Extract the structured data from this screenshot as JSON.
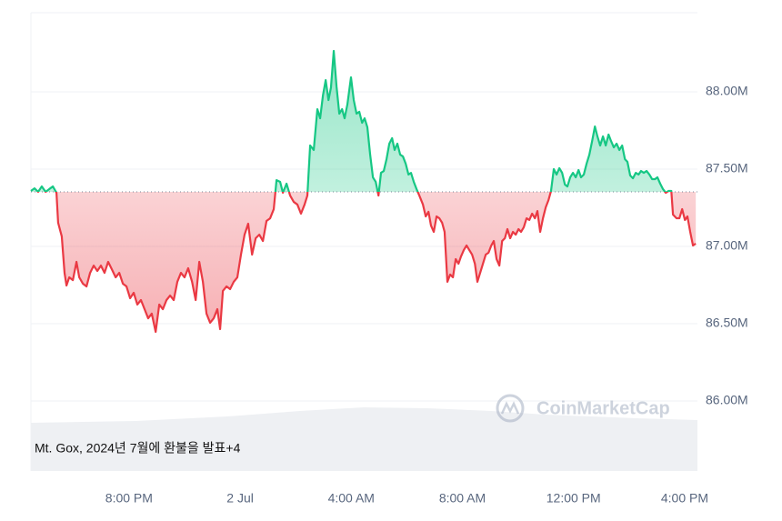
{
  "chart_data": {
    "type": "line",
    "annotation": "Mt. Gox, 2024년 7월에 환불을 발표+4",
    "watermark": "CoinMarketCap",
    "up_color": "#16c784",
    "down_color": "#ea3943",
    "reference_line": 87.353,
    "xlim": [
      -7.53,
      16.46
    ],
    "ylim": [
      85.547,
      88.512
    ],
    "grid": true,
    "xticks": [
      {
        "value": -4,
        "label": "8:00 PM"
      },
      {
        "value": 0,
        "label": "2 Jul"
      },
      {
        "value": 4,
        "label": "4:00 AM"
      },
      {
        "value": 8,
        "label": "8:00 AM"
      },
      {
        "value": 12,
        "label": "12:00 PM"
      },
      {
        "value": 16,
        "label": "4:00 PM"
      }
    ],
    "yticks": [
      {
        "value": 86,
        "label": "86.00M"
      },
      {
        "value": 86.5,
        "label": "86.50M"
      },
      {
        "value": 87,
        "label": "87.00M"
      },
      {
        "value": 87.5,
        "label": "87.50M"
      },
      {
        "value": 88,
        "label": "88.00M"
      }
    ],
    "x": [
      -7.53,
      -7.4,
      -7.27,
      -7.14,
      -7.0,
      -6.87,
      -6.74,
      -6.61,
      -6.55,
      -6.42,
      -6.32,
      -6.25,
      -6.15,
      -6.02,
      -5.89,
      -5.79,
      -5.66,
      -5.53,
      -5.4,
      -5.27,
      -5.14,
      -5.01,
      -4.88,
      -4.75,
      -4.62,
      -4.48,
      -4.35,
      -4.22,
      -4.09,
      -3.96,
      -3.83,
      -3.7,
      -3.57,
      -3.44,
      -3.31,
      -3.18,
      -3.04,
      -2.91,
      -2.78,
      -2.65,
      -2.52,
      -2.39,
      -2.26,
      -2.13,
      -2.0,
      -1.87,
      -1.73,
      -1.6,
      -1.47,
      -1.34,
      -1.21,
      -1.08,
      -0.95,
      -0.82,
      -0.72,
      -0.62,
      -0.49,
      -0.36,
      -0.23,
      -0.1,
      0.03,
      0.16,
      0.29,
      0.43,
      0.56,
      0.69,
      0.82,
      0.95,
      1.08,
      1.21,
      1.31,
      1.44,
      1.54,
      1.67,
      1.8,
      1.93,
      2.06,
      2.19,
      2.32,
      2.42,
      2.52,
      2.65,
      2.78,
      2.88,
      2.98,
      3.08,
      3.18,
      3.27,
      3.37,
      3.47,
      3.57,
      3.67,
      3.76,
      3.86,
      3.99,
      4.09,
      4.19,
      4.29,
      4.39,
      4.48,
      4.58,
      4.68,
      4.78,
      4.88,
      4.98,
      5.07,
      5.17,
      5.27,
      5.37,
      5.47,
      5.56,
      5.66,
      5.76,
      5.86,
      5.96,
      6.06,
      6.15,
      6.25,
      6.35,
      6.45,
      6.58,
      6.68,
      6.78,
      6.87,
      6.97,
      7.07,
      7.17,
      7.27,
      7.36,
      7.46,
      7.56,
      7.66,
      7.76,
      7.86,
      7.95,
      8.05,
      8.15,
      8.25,
      8.35,
      8.45,
      8.54,
      8.64,
      8.74,
      8.84,
      8.94,
      9.04,
      9.13,
      9.23,
      9.33,
      9.43,
      9.53,
      9.62,
      9.72,
      9.82,
      9.92,
      10.02,
      10.11,
      10.21,
      10.31,
      10.41,
      10.51,
      10.61,
      10.7,
      10.8,
      10.9,
      11.0,
      11.1,
      11.19,
      11.29,
      11.39,
      11.49,
      11.59,
      11.69,
      11.78,
      11.88,
      11.98,
      12.08,
      12.18,
      12.27,
      12.37,
      12.47,
      12.57,
      12.67,
      12.77,
      12.86,
      12.96,
      13.06,
      13.16,
      13.26,
      13.35,
      13.45,
      13.55,
      13.65,
      13.75,
      13.85,
      13.94,
      14.04,
      14.14,
      14.24,
      14.34,
      14.43,
      14.53,
      14.63,
      14.73,
      14.83,
      14.93,
      15.02,
      15.12,
      15.22,
      15.32,
      15.42,
      15.52,
      15.58,
      15.71,
      15.81,
      15.91,
      16.01,
      16.1,
      16.2,
      16.3,
      16.4
    ],
    "values": [
      87.359,
      87.376,
      87.353,
      87.388,
      87.353,
      87.371,
      87.388,
      87.347,
      87.153,
      87.065,
      86.829,
      86.747,
      86.8,
      86.782,
      86.9,
      86.8,
      86.759,
      86.741,
      86.829,
      86.876,
      86.841,
      86.876,
      86.829,
      86.9,
      86.853,
      86.8,
      86.829,
      86.759,
      86.741,
      86.665,
      86.7,
      86.624,
      86.653,
      86.594,
      86.535,
      86.565,
      86.447,
      86.624,
      86.594,
      86.653,
      86.682,
      86.653,
      86.771,
      86.829,
      86.8,
      86.859,
      86.771,
      86.653,
      86.9,
      86.771,
      86.565,
      86.506,
      86.535,
      86.594,
      86.465,
      86.712,
      86.741,
      86.724,
      86.771,
      86.8,
      86.947,
      87.076,
      87.147,
      86.947,
      87.053,
      87.076,
      87.035,
      87.165,
      87.182,
      87.241,
      87.429,
      87.418,
      87.347,
      87.406,
      87.329,
      87.288,
      87.271,
      87.212,
      87.271,
      87.329,
      87.653,
      87.624,
      87.888,
      87.829,
      87.976,
      88.076,
      87.947,
      88.029,
      88.265,
      88.035,
      87.859,
      87.888,
      87.829,
      87.918,
      88.094,
      87.947,
      87.859,
      87.871,
      87.8,
      87.829,
      87.771,
      87.594,
      87.447,
      87.418,
      87.329,
      87.476,
      87.488,
      87.565,
      87.665,
      87.7,
      87.624,
      87.665,
      87.594,
      87.582,
      87.535,
      87.465,
      87.476,
      87.418,
      87.371,
      87.329,
      87.271,
      87.194,
      87.224,
      87.135,
      87.094,
      87.194,
      87.182,
      87.153,
      87.094,
      86.771,
      86.818,
      86.8,
      86.918,
      86.888,
      86.935,
      86.976,
      87.006,
      86.976,
      86.947,
      86.888,
      86.771,
      86.829,
      86.888,
      86.947,
      86.959,
      87.006,
      87.035,
      86.918,
      86.876,
      87.035,
      87.053,
      87.112,
      87.053,
      87.094,
      87.076,
      87.112,
      87.094,
      87.124,
      87.182,
      87.171,
      87.212,
      87.182,
      87.229,
      87.094,
      87.182,
      87.253,
      87.3,
      87.359,
      87.5,
      87.465,
      87.506,
      87.476,
      87.4,
      87.388,
      87.447,
      87.476,
      87.447,
      87.494,
      87.447,
      87.465,
      87.535,
      87.594,
      87.682,
      87.776,
      87.712,
      87.653,
      87.712,
      87.653,
      87.724,
      87.682,
      87.641,
      87.665,
      87.624,
      87.653,
      87.565,
      87.547,
      87.459,
      87.441,
      87.476,
      87.465,
      87.488,
      87.476,
      87.488,
      87.465,
      87.435,
      87.435,
      87.447,
      87.406,
      87.371,
      87.347,
      87.359,
      87.359,
      87.206,
      87.182,
      87.182,
      87.241,
      87.171,
      87.194,
      87.094,
      87.006,
      87.018
    ]
  }
}
